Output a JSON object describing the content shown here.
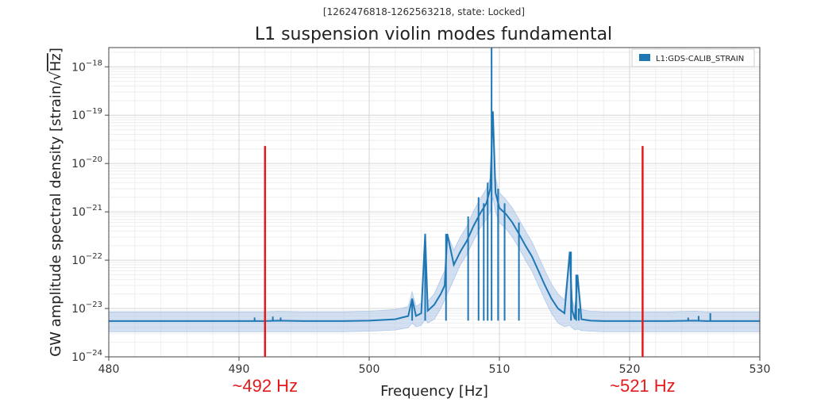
{
  "chart_data": {
    "type": "line",
    "subtitle": "[1262476818-1262563218, state: Locked]",
    "title": "L1 suspension violin modes fundamental",
    "xlabel": "Frequency [Hz]",
    "ylabel_main": "GW amplitude spectral density [strain/",
    "ylabel_sqrt": "√",
    "ylabel_unit": "Hz",
    "ylabel_close": "]",
    "xlim": [
      480,
      530
    ],
    "ylim": [
      1e-24,
      2.5e-18
    ],
    "yscale": "log",
    "grid": true,
    "legend_position": "top-right",
    "x_ticks": [
      {
        "value": 480,
        "label": "480"
      },
      {
        "value": 490,
        "label": "490"
      },
      {
        "value": 500,
        "label": "500"
      },
      {
        "value": 510,
        "label": "510"
      },
      {
        "value": 520,
        "label": "520"
      },
      {
        "value": 530,
        "label": "530"
      }
    ],
    "y_ticks": [
      {
        "value": 1e-24,
        "base": "10",
        "exp": "−24"
      },
      {
        "value": 1e-23,
        "base": "10",
        "exp": "−23"
      },
      {
        "value": 1e-22,
        "base": "10",
        "exp": "−22"
      },
      {
        "value": 1e-21,
        "base": "10",
        "exp": "−21"
      },
      {
        "value": 1e-20,
        "base": "10",
        "exp": "−20"
      },
      {
        "value": 1e-19,
        "base": "10",
        "exp": "−19"
      },
      {
        "value": 1e-18,
        "base": "10",
        "exp": "−18"
      }
    ],
    "series": [
      {
        "name": "L1:GDS-CALIB_STRAIN",
        "color": "#1f77b4",
        "band_color": "#aec7e8",
        "x": [
          480,
          484,
          488,
          492,
          493,
          495,
          498,
          500,
          502,
          503,
          503.3,
          503.6,
          504,
          504.3,
          504.5,
          505,
          505.5,
          505.8,
          506,
          506.5,
          507,
          507.5,
          508,
          508.5,
          509,
          509.3,
          509.5,
          509.7,
          510,
          510.5,
          511,
          511.5,
          512,
          512.5,
          513,
          513.5,
          514,
          514.5,
          515,
          515.4,
          515.6,
          515.8,
          516,
          516.3,
          517,
          518,
          520,
          523,
          525,
          526,
          528,
          530
        ],
        "y": [
          5.5e-24,
          5.5e-24,
          5.5e-24,
          5.5e-24,
          5.6e-24,
          5.5e-24,
          5.5e-24,
          5.6e-24,
          6e-24,
          7e-24,
          1.6e-23,
          7e-24,
          8e-24,
          3.5e-22,
          9e-24,
          1.2e-23,
          2e-23,
          3e-23,
          3.5e-22,
          8e-23,
          1.5e-22,
          2.5e-22,
          5e-22,
          9e-22,
          1.5e-21,
          3e-21,
          1.2e-19,
          2.5e-21,
          1.2e-21,
          9e-22,
          6e-22,
          3.5e-22,
          2e-22,
          1.2e-22,
          6e-23,
          3e-23,
          1.6e-23,
          1e-23,
          8e-24,
          1.5e-22,
          9e-24,
          6e-24,
          5e-23,
          6e-24,
          5.6e-24,
          5.5e-24,
          5.5e-24,
          5.5e-24,
          5.6e-24,
          5.5e-24,
          5.5e-24,
          5.5e-24
        ],
        "band_low": [
          3.3e-24,
          3.3e-24,
          3.3e-24,
          3.3e-24,
          3.3e-24,
          3.3e-24,
          3.3e-24,
          3.4e-24,
          3.6e-24,
          4e-24,
          5e-24,
          4.2e-24,
          4.5e-24,
          6e-24,
          5e-24,
          6e-24,
          1e-23,
          1.5e-23,
          2e-23,
          4e-23,
          8e-23,
          1.3e-22,
          2.5e-22,
          4.5e-22,
          7e-22,
          1e-21,
          2e-21,
          1e-21,
          6e-22,
          4.5e-22,
          3e-22,
          1.8e-22,
          1e-22,
          6e-23,
          3e-23,
          1.5e-23,
          8e-24,
          5e-24,
          4.2e-24,
          4.5e-24,
          4e-24,
          3.6e-24,
          3.8e-24,
          3.5e-24,
          3.4e-24,
          3.3e-24,
          3.3e-24,
          3.3e-24,
          3.3e-24,
          3.3e-24,
          3.3e-24,
          3.3e-24
        ],
        "band_high": [
          8.5e-24,
          8.5e-24,
          8.5e-24,
          8.5e-24,
          8.7e-24,
          8.5e-24,
          8.5e-24,
          8.8e-24,
          9.5e-24,
          1.1e-23,
          2.2e-23,
          1.1e-23,
          1.3e-23,
          3.5e-22,
          1.4e-23,
          2e-23,
          4e-23,
          6e-23,
          3.5e-22,
          1.6e-22,
          3e-22,
          5e-22,
          1e-21,
          1.8e-21,
          3e-21,
          5e-21,
          1.2e-19,
          5e-21,
          2.5e-21,
          1.8e-21,
          1.2e-21,
          7e-22,
          4e-22,
          2.4e-22,
          1.2e-22,
          6e-23,
          3.2e-23,
          2e-23,
          1.5e-23,
          1.5e-22,
          1.5e-23,
          1e-23,
          5e-23,
          9.5e-24,
          8.8e-24,
          8.5e-24,
          8.5e-24,
          8.5e-24,
          8.8e-24,
          8.5e-24,
          8.5e-24,
          8.5e-24
        ]
      }
    ],
    "peaks": [
      {
        "x": 491.2,
        "y": 6.5e-24
      },
      {
        "x": 492.6,
        "y": 6.8e-24
      },
      {
        "x": 493.2,
        "y": 6.5e-24
      },
      {
        "x": 503.3,
        "y": 1.6e-23
      },
      {
        "x": 504.3,
        "y": 3.5e-22
      },
      {
        "x": 505.9,
        "y": 3.5e-22
      },
      {
        "x": 507.6,
        "y": 8e-22
      },
      {
        "x": 508.4,
        "y": 2e-21
      },
      {
        "x": 508.8,
        "y": 1.5e-21
      },
      {
        "x": 509.1,
        "y": 4e-21
      },
      {
        "x": 509.4,
        "y": 2.5e-18
      },
      {
        "x": 509.9,
        "y": 3e-21
      },
      {
        "x": 510.4,
        "y": 1.5e-21
      },
      {
        "x": 511.5,
        "y": 6e-22
      },
      {
        "x": 515.5,
        "y": 1.5e-22
      },
      {
        "x": 515.9,
        "y": 5e-23
      },
      {
        "x": 516.1,
        "y": 1e-23
      },
      {
        "x": 524.5,
        "y": 6.5e-24
      },
      {
        "x": 525.3,
        "y": 7e-24
      },
      {
        "x": 526.2,
        "y": 8e-24
      }
    ],
    "annotations": [
      {
        "x": 492,
        "y_top": 2.3e-20,
        "label": "~492 Hz",
        "color": "#e31a1c"
      },
      {
        "x": 521,
        "y_top": 2.3e-20,
        "label": "~521 Hz",
        "color": "#e31a1c"
      }
    ]
  }
}
